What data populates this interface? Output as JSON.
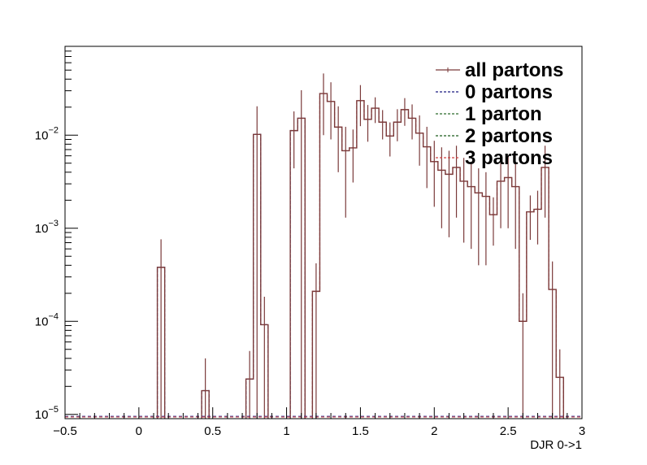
{
  "chart_data": {
    "type": "histogram",
    "xlabel": "DJR 0->1",
    "ylabel": "",
    "title": "",
    "xlim": [
      -0.5,
      3.0
    ],
    "ylim": [
      9e-06,
      0.09
    ],
    "yscale": "log",
    "bin_width": 0.05,
    "x_ticks": [
      "−0.5",
      "0",
      "0.5",
      "1",
      "1.5",
      "2",
      "2.5",
      "3"
    ],
    "y_ticks": [
      {
        "value": 1e-05,
        "base": "10",
        "exp": "−5"
      },
      {
        "value": 0.0001,
        "base": "10",
        "exp": "−4"
      },
      {
        "value": 0.001,
        "base": "10",
        "exp": "−3"
      },
      {
        "value": 0.01,
        "base": "10",
        "exp": "−2"
      }
    ],
    "legend": {
      "placement": "top-right",
      "entries": [
        "all partons",
        "0 partons",
        "1 parton",
        "2 partons",
        "3 partons"
      ]
    },
    "series": [
      {
        "name": "all partons",
        "color": "#7a3a3a",
        "style": "solid",
        "bins": [
          {
            "x": 0.125,
            "y": 0.00038,
            "err": 0.00038
          },
          {
            "x": 0.425,
            "y": 1.8e-05,
            "err": 2.2e-05
          },
          {
            "x": 0.725,
            "y": 2.4e-05,
            "err": 2.4e-05
          },
          {
            "x": 0.775,
            "y": 0.0102,
            "err": 0.0102
          },
          {
            "x": 0.825,
            "y": 9.2e-05,
            "err": 9.2e-05
          },
          {
            "x": 1.025,
            "y": 0.0112,
            "err": 0.0068
          },
          {
            "x": 1.075,
            "y": 0.0152,
            "err": 0.0152
          },
          {
            "x": 1.175,
            "y": 0.00021,
            "err": 0.00021
          },
          {
            "x": 1.225,
            "y": 0.028,
            "err": 0.018
          },
          {
            "x": 1.275,
            "y": 0.023,
            "err": 0.014
          },
          {
            "x": 1.325,
            "y": 0.0122,
            "err": 0.0082
          },
          {
            "x": 1.375,
            "y": 0.0068,
            "err": 0.0055
          },
          {
            "x": 1.425,
            "y": 0.0073,
            "err": 0.0042
          },
          {
            "x": 1.475,
            "y": 0.0235,
            "err": 0.011
          },
          {
            "x": 1.525,
            "y": 0.0148,
            "err": 0.0063
          },
          {
            "x": 1.575,
            "y": 0.0195,
            "err": 0.006
          },
          {
            "x": 1.625,
            "y": 0.0138,
            "err": 0.0048
          },
          {
            "x": 1.675,
            "y": 0.0098,
            "err": 0.0039
          },
          {
            "x": 1.725,
            "y": 0.0138,
            "err": 0.0052
          },
          {
            "x": 1.775,
            "y": 0.0188,
            "err": 0.0062
          },
          {
            "x": 1.825,
            "y": 0.0152,
            "err": 0.0062
          },
          {
            "x": 1.875,
            "y": 0.0105,
            "err": 0.0058
          },
          {
            "x": 1.925,
            "y": 0.0075,
            "err": 0.0048
          },
          {
            "x": 1.975,
            "y": 0.0052,
            "err": 0.0035
          },
          {
            "x": 2.025,
            "y": 0.0042,
            "err": 0.0032
          },
          {
            "x": 2.075,
            "y": 0.0038,
            "err": 0.003
          },
          {
            "x": 2.125,
            "y": 0.0045,
            "err": 0.0032
          },
          {
            "x": 2.175,
            "y": 0.0032,
            "err": 0.0025
          },
          {
            "x": 2.225,
            "y": 0.0028,
            "err": 0.0022
          },
          {
            "x": 2.275,
            "y": 0.0024,
            "err": 0.002
          },
          {
            "x": 2.325,
            "y": 0.0022,
            "err": 0.0018
          },
          {
            "x": 2.375,
            "y": 0.0014,
            "err": 0.00075
          },
          {
            "x": 2.425,
            "y": 0.0032,
            "err": 0.0022
          },
          {
            "x": 2.475,
            "y": 0.0035,
            "err": 0.0025
          },
          {
            "x": 2.525,
            "y": 0.0028,
            "err": 0.0022
          },
          {
            "x": 2.575,
            "y": 0.0001,
            "err": 0.0001
          },
          {
            "x": 2.625,
            "y": 0.0015,
            "err": 0.00075
          },
          {
            "x": 2.675,
            "y": 0.0016,
            "err": 0.00093
          },
          {
            "x": 2.725,
            "y": 0.0045,
            "err": 0.0032
          },
          {
            "x": 2.775,
            "y": 0.00022,
            "err": 0.00022
          },
          {
            "x": 2.825,
            "y": 2.5e-05,
            "err": 2.5e-05
          }
        ]
      },
      {
        "name": "0 partons",
        "color": "#1a1a80",
        "style": "dashed",
        "bins": [
          {
            "x": 0.125,
            "y": 0.00038
          },
          {
            "x": 0.425,
            "y": 1.8e-05
          },
          {
            "x": 0.725,
            "y": 2.4e-05
          },
          {
            "x": 0.775,
            "y": 0.0102
          },
          {
            "x": 0.825,
            "y": 9.2e-05
          },
          {
            "x": 1.025,
            "y": 0.0112
          },
          {
            "x": 1.075,
            "y": 0.0152
          }
        ]
      },
      {
        "name": "1 parton",
        "color": "#2a6a2a",
        "style": "dashed",
        "bins": []
      },
      {
        "name": "2 partons",
        "color": "#1a5a1a",
        "style": "dashed",
        "bins": []
      },
      {
        "name": "3 partons",
        "color": "#d04040",
        "style": "dashed",
        "bins": [
          {
            "x": 1.175,
            "y": 0.00021
          },
          {
            "x": 1.225,
            "y": 0.028
          },
          {
            "x": 1.275,
            "y": 0.023
          },
          {
            "x": 1.325,
            "y": 0.0122
          },
          {
            "x": 1.375,
            "y": 0.0068
          },
          {
            "x": 1.425,
            "y": 0.0073
          },
          {
            "x": 1.475,
            "y": 0.0235
          },
          {
            "x": 1.525,
            "y": 0.0148
          },
          {
            "x": 1.575,
            "y": 0.0195
          },
          {
            "x": 1.625,
            "y": 0.0138
          },
          {
            "x": 1.675,
            "y": 0.0098
          },
          {
            "x": 1.725,
            "y": 0.0138
          },
          {
            "x": 1.775,
            "y": 0.0188
          },
          {
            "x": 1.825,
            "y": 0.0152
          },
          {
            "x": 1.875,
            "y": 0.0105
          },
          {
            "x": 1.925,
            "y": 0.0075
          },
          {
            "x": 1.975,
            "y": 0.0052
          },
          {
            "x": 2.025,
            "y": 0.0042
          },
          {
            "x": 2.075,
            "y": 0.0038
          },
          {
            "x": 2.125,
            "y": 0.0045
          },
          {
            "x": 2.175,
            "y": 0.0032
          },
          {
            "x": 2.225,
            "y": 0.0028
          },
          {
            "x": 2.275,
            "y": 0.0024
          },
          {
            "x": 2.325,
            "y": 0.0022
          },
          {
            "x": 2.375,
            "y": 0.0014
          },
          {
            "x": 2.425,
            "y": 0.0032
          },
          {
            "x": 2.475,
            "y": 0.0035
          },
          {
            "x": 2.525,
            "y": 0.0028
          },
          {
            "x": 2.575,
            "y": 0.0001
          },
          {
            "x": 2.625,
            "y": 0.0015
          },
          {
            "x": 2.675,
            "y": 0.0016
          },
          {
            "x": 2.725,
            "y": 0.0045
          },
          {
            "x": 2.775,
            "y": 0.00022
          },
          {
            "x": 2.825,
            "y": 2.5e-05
          }
        ]
      }
    ]
  }
}
